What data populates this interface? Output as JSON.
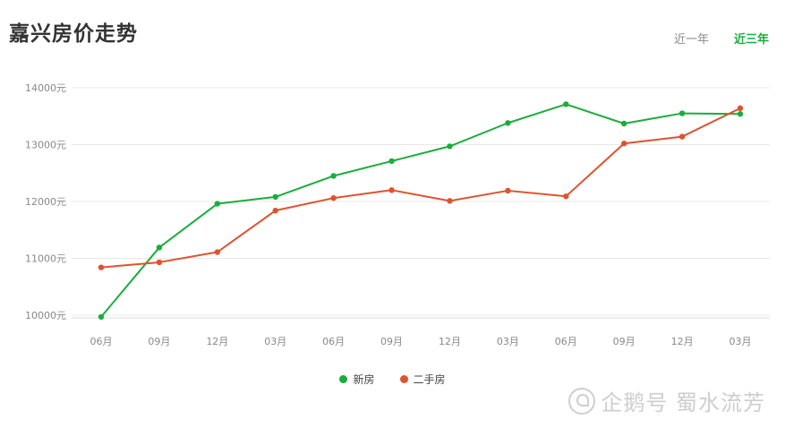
{
  "header": {
    "title": "嘉兴房价走势",
    "tabs": [
      {
        "label": "近一年",
        "active": false
      },
      {
        "label": "近三年",
        "active": true
      }
    ]
  },
  "watermark": {
    "text": "企鹅号 蜀水流芳"
  },
  "colors": {
    "new": "#1aad3c",
    "used": "#e0522e",
    "grid": "#e8e8e8",
    "tab_active": "#1aad3c"
  },
  "chart_data": {
    "type": "line",
    "title": "嘉兴房价走势",
    "categories": [
      "06月",
      "09月",
      "12月",
      "03月",
      "06月",
      "09月",
      "12月",
      "03月",
      "06月",
      "09月",
      "12月",
      "03月"
    ],
    "y_tick_labels": [
      "14000元",
      "13000元",
      "12000元",
      "11000元",
      "10000元"
    ],
    "y_ticks": [
      14000,
      13000,
      12000,
      11000,
      10000
    ],
    "ylim": [
      10000,
      14000
    ],
    "grid": true,
    "legend_position": "bottom",
    "series": [
      {
        "name": "新房",
        "color": "#1aad3c",
        "values": [
          9970,
          11190,
          11960,
          12080,
          12450,
          12710,
          12970,
          13380,
          13710,
          13370,
          13550,
          13540
        ]
      },
      {
        "name": "二手房",
        "color": "#e0522e",
        "values": [
          10840,
          10930,
          11110,
          11840,
          12060,
          12200,
          12010,
          12190,
          12090,
          13020,
          13140,
          13640
        ]
      }
    ]
  }
}
